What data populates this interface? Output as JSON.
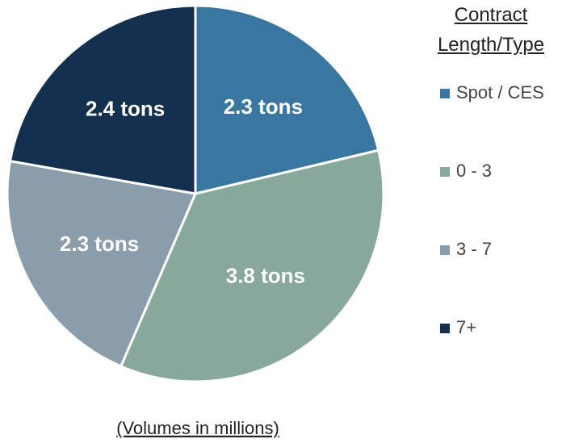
{
  "chart_data": {
    "type": "pie",
    "categories": [
      "Spot / CES",
      "0 - 3",
      "3 - 7",
      "7+"
    ],
    "values": [
      2.3,
      3.8,
      2.3,
      2.4
    ],
    "value_labels": [
      "2.3 tons",
      "3.8 tons",
      "2.3 tons",
      "2.4 tons"
    ],
    "colors": [
      "#3a77a0",
      "#87a89b",
      "#8b9dab",
      "#14304f"
    ],
    "legend_title": "Contract Length/Type",
    "legend": "right",
    "footnote": "(Volumes in millions)"
  }
}
